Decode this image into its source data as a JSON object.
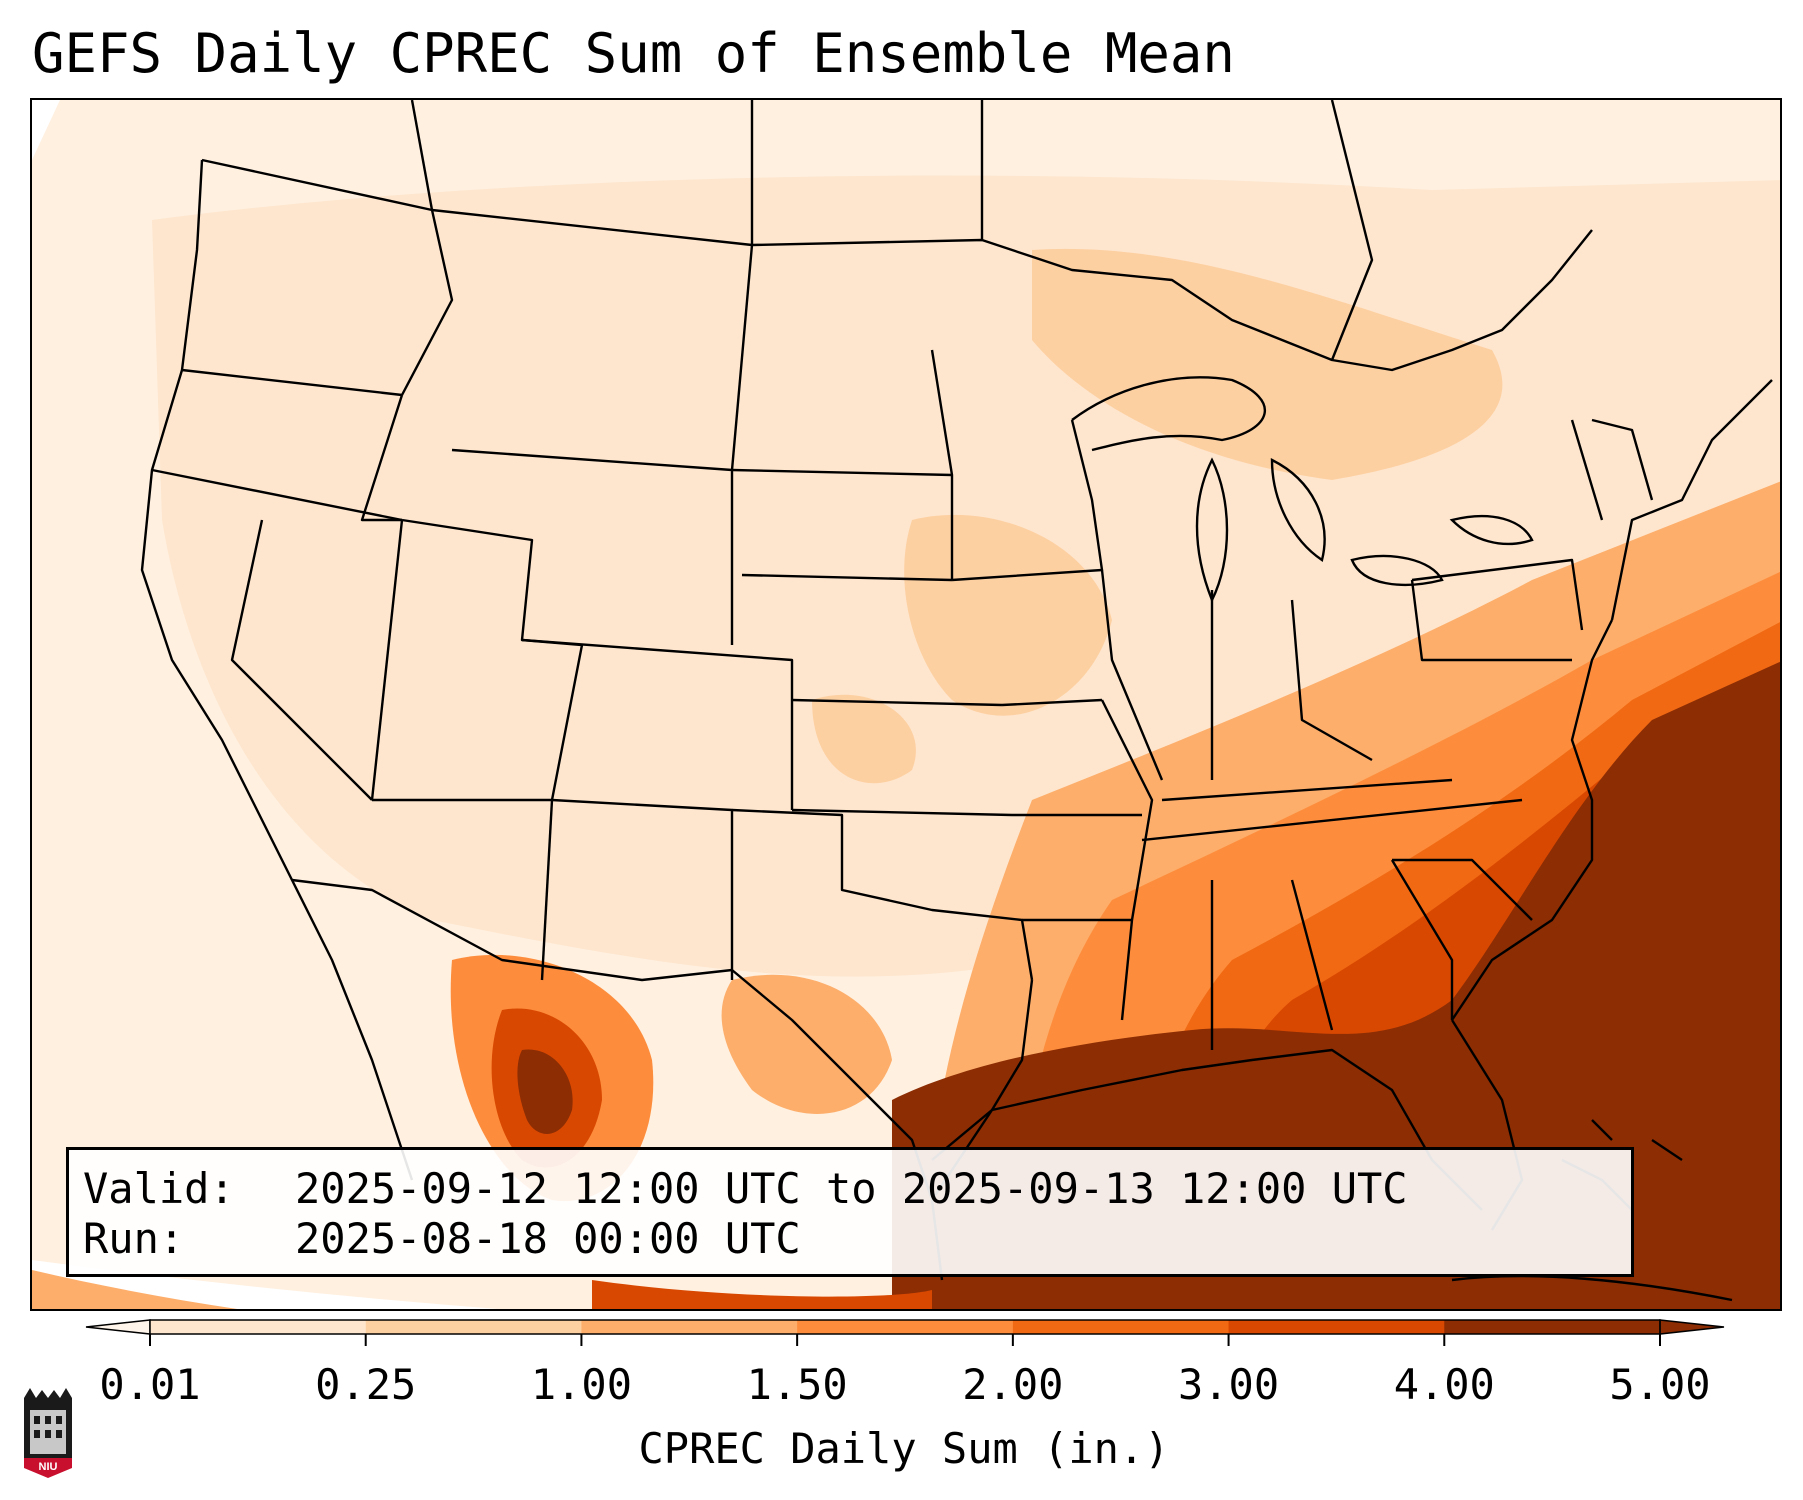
{
  "title": "GEFS Daily CPREC Sum of Ensemble Mean",
  "info": {
    "valid_label": "Valid:",
    "valid_value": "2025-09-12 12:00 UTC to 2025-09-13 12:00 UTC",
    "run_label": "Run:",
    "run_value": "2025-08-18 00:00 UTC"
  },
  "colorbar": {
    "label": "CPREC Daily Sum (in.)",
    "ticks": [
      "0.01",
      "0.25",
      "1.00",
      "1.50",
      "2.00",
      "3.00",
      "4.00",
      "5.00"
    ],
    "colors": [
      "#fff5eb",
      "#fee6ce",
      "#fdd0a2",
      "#fdae6b",
      "#fd8d3c",
      "#f16913",
      "#d94801",
      "#8c2d04"
    ]
  },
  "logo": {
    "text": "NIU",
    "icon": "university-seal-icon"
  }
}
